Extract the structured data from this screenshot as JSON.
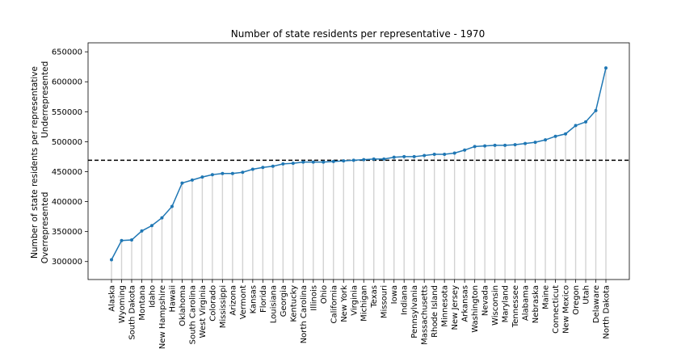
{
  "chart_data": {
    "type": "line",
    "title": "Number of state residents per representative - 1970",
    "ylabel_line1": "Number of state residents per representative",
    "ylabel_line2": "Overrepresented                    Underrepresented",
    "xlabel": "",
    "ylim": [
      270000,
      665000
    ],
    "yticks": [
      300000,
      350000,
      400000,
      450000,
      500000,
      550000,
      600000,
      650000
    ],
    "reference_line": 469000,
    "colors": {
      "line": "#1f77b4",
      "stem": "#d3d3d3",
      "reference": "#000000"
    },
    "categories": [
      "Alaska",
      "Wyoming",
      "South Dakota",
      "Montana",
      "Idaho",
      "New Hampshire",
      "Hawaii",
      "Oklahoma",
      "South Carolina",
      "West Virginia",
      "Colorado",
      "Mississippi",
      "Arizona",
      "Vermont",
      "Kansas",
      "Florida",
      "Louisiana",
      "Georgia",
      "Kentucky",
      "North Carolina",
      "Illinois",
      "Ohio",
      "California",
      "New York",
      "Virginia",
      "Michigan",
      "Texas",
      "Missouri",
      "Iowa",
      "Indiana",
      "Pennsylvania",
      "Massachusetts",
      "Rhode Island",
      "Minnesota",
      "New Jersey",
      "Arkansas",
      "Washington",
      "Nevada",
      "Wisconsin",
      "Maryland",
      "Tennessee",
      "Alabama",
      "Nebraska",
      "Maine",
      "Connecticut",
      "New Mexico",
      "Oregon",
      "Utah",
      "Delaware",
      "North Dakota"
    ],
    "values": [
      303000,
      335000,
      336000,
      351000,
      360000,
      373000,
      392000,
      431000,
      436000,
      441000,
      445000,
      447000,
      447000,
      449000,
      454000,
      457000,
      459000,
      463000,
      464000,
      466000,
      466000,
      466000,
      467000,
      468000,
      469000,
      470000,
      471000,
      471000,
      474000,
      475000,
      475000,
      477000,
      479000,
      479000,
      481000,
      486000,
      492000,
      493000,
      494000,
      494000,
      495000,
      497000,
      499000,
      503000,
      509000,
      513000,
      527000,
      533000,
      552000,
      623000
    ]
  }
}
